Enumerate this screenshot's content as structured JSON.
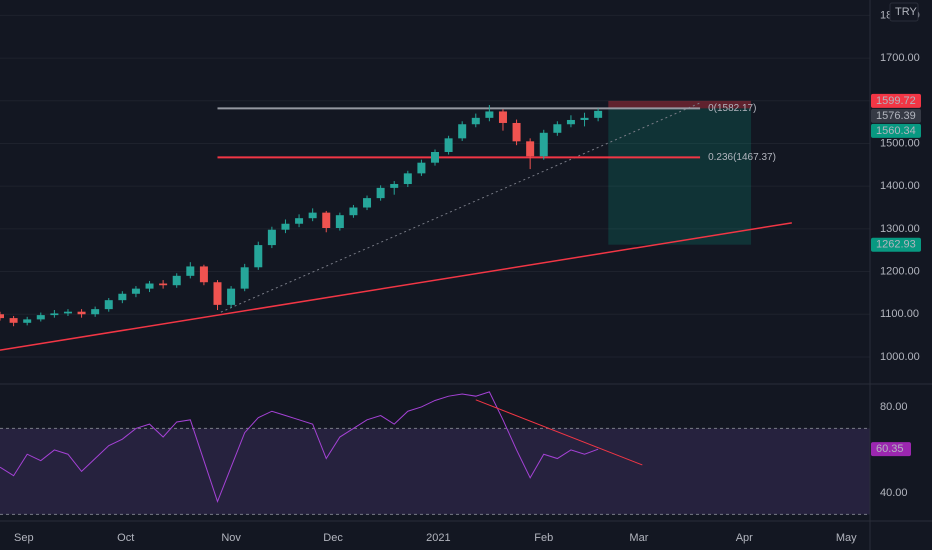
{
  "chart_data": [
    {
      "type": "candlestick",
      "currency": "TRY",
      "xlim": [
        -7,
        249
      ],
      "ylim": [
        939,
        1836
      ],
      "yticks": [
        {
          "value": 1000,
          "label": "1000.00"
        },
        {
          "value": 1100,
          "label": "1100.00"
        },
        {
          "value": 1200,
          "label": "1200.00"
        },
        {
          "value": 1300,
          "label": "1300.00"
        },
        {
          "value": 1400,
          "label": "1400.00"
        },
        {
          "value": 1500,
          "label": "1500.00"
        },
        {
          "value": 1600,
          "label": "1600.00"
        },
        {
          "value": 1700,
          "label": "1700.00"
        },
        {
          "value": 1800,
          "label": "1800.00"
        }
      ],
      "up_color": "#26a69a",
      "down_color": "#ef5350",
      "x": [
        -7,
        -3,
        1,
        5,
        9,
        13,
        17,
        21,
        25,
        29,
        33,
        37,
        41,
        45,
        49,
        53,
        57,
        61,
        65,
        69,
        73,
        77,
        81,
        85,
        89,
        93,
        97,
        101,
        105,
        109,
        113,
        117,
        121,
        125,
        129,
        133,
        137,
        141,
        145,
        149,
        153,
        157,
        161,
        165,
        169
      ],
      "open": [
        1100,
        1091,
        1080,
        1088,
        1098,
        1102,
        1106,
        1100,
        1112,
        1133,
        1148,
        1160,
        1172,
        1168,
        1190,
        1212,
        1175,
        1122,
        1160,
        1210,
        1262,
        1298,
        1312,
        1325,
        1338,
        1302,
        1332,
        1350,
        1372,
        1396,
        1405,
        1430,
        1455,
        1480,
        1512,
        1545,
        1560,
        1575,
        1548,
        1505,
        1470,
        1525,
        1545,
        1555,
        1560
      ],
      "high": [
        1106,
        1096,
        1094,
        1104,
        1110,
        1112,
        1112,
        1118,
        1138,
        1154,
        1166,
        1178,
        1180,
        1196,
        1222,
        1216,
        1180,
        1166,
        1218,
        1270,
        1305,
        1322,
        1334,
        1348,
        1342,
        1338,
        1356,
        1378,
        1402,
        1412,
        1436,
        1462,
        1486,
        1518,
        1552,
        1570,
        1590,
        1580,
        1556,
        1512,
        1532,
        1552,
        1566,
        1572,
        1582
      ],
      "low": [
        1085,
        1072,
        1074,
        1083,
        1092,
        1096,
        1092,
        1094,
        1106,
        1126,
        1140,
        1152,
        1160,
        1162,
        1184,
        1168,
        1110,
        1115,
        1154,
        1204,
        1255,
        1290,
        1304,
        1318,
        1292,
        1296,
        1326,
        1344,
        1366,
        1380,
        1398,
        1424,
        1448,
        1474,
        1506,
        1538,
        1552,
        1530,
        1496,
        1440,
        1462,
        1518,
        1538,
        1540,
        1552
      ],
      "close": [
        1091,
        1080,
        1088,
        1098,
        1102,
        1106,
        1100,
        1112,
        1133,
        1148,
        1160,
        1172,
        1168,
        1190,
        1212,
        1175,
        1122,
        1160,
        1210,
        1262,
        1298,
        1312,
        1325,
        1338,
        1302,
        1332,
        1350,
        1372,
        1396,
        1405,
        1430,
        1455,
        1480,
        1512,
        1545,
        1560,
        1575,
        1548,
        1505,
        1470,
        1525,
        1545,
        1555,
        1560,
        1576.39
      ],
      "lines": [
        {
          "x": [
            -7,
            226
          ],
          "values": [
            1016,
            1314
          ],
          "color": "#f23645",
          "style": "solid"
        },
        {
          "x": [
            58,
            199
          ],
          "values": [
            1105,
            1595
          ],
          "color": "#787b86",
          "style": "dotted"
        }
      ],
      "fib_levels": [
        {
          "label": "0(1582.17)",
          "value": 1582.17,
          "x": [
            57,
            199
          ],
          "color": "#9598a1"
        },
        {
          "label": "0.236(1467.37)",
          "value": 1467.37,
          "x": [
            57,
            199
          ],
          "color": "#f23645"
        }
      ],
      "position": {
        "x": [
          172,
          214
        ],
        "stop": 1599.72,
        "entry": 1582.17,
        "target": 1262.93
      },
      "price_markers": [
        {
          "value": 1599.72,
          "color": "#f23645"
        },
        {
          "value": 1576.39,
          "color": "#363a45"
        },
        {
          "value": 1560.34,
          "color": "#089981"
        },
        {
          "value": 1262.93,
          "color": "#089981"
        }
      ]
    },
    {
      "type": "line",
      "color": "#a542d6",
      "xlim": [
        -7,
        249
      ],
      "ylim": [
        27.4,
        90.2
      ],
      "xticks": [
        {
          "value": 0,
          "label": "Sep"
        },
        {
          "value": 30,
          "label": "Oct"
        },
        {
          "value": 61,
          "label": "Nov"
        },
        {
          "value": 91,
          "label": "Dec"
        },
        {
          "value": 122,
          "label": "2021"
        },
        {
          "value": 153,
          "label": "Feb"
        },
        {
          "value": 181,
          "label": "Mar"
        },
        {
          "value": 212,
          "label": "Apr"
        },
        {
          "value": 242,
          "label": "May"
        }
      ],
      "yticks": [
        {
          "value": 40,
          "label": "40.00"
        },
        {
          "value": 80,
          "label": "80.00"
        }
      ],
      "band": [
        30,
        70
      ],
      "x": [
        -7,
        -3,
        1,
        5,
        9,
        13,
        17,
        21,
        25,
        29,
        33,
        37,
        41,
        45,
        49,
        53,
        57,
        61,
        65,
        69,
        73,
        77,
        81,
        85,
        89,
        93,
        97,
        101,
        105,
        109,
        113,
        117,
        121,
        125,
        129,
        133,
        137,
        141,
        145,
        149,
        153,
        157,
        161,
        165,
        169
      ],
      "values": [
        52,
        48,
        58,
        55,
        60,
        58,
        50,
        56,
        62,
        65,
        70,
        72,
        66,
        73,
        74,
        55,
        36,
        52,
        68,
        75,
        78,
        76,
        74,
        72,
        56,
        66,
        70,
        74,
        76,
        72,
        78,
        80,
        83,
        85,
        86,
        85,
        87,
        74,
        60,
        47,
        58,
        56,
        60,
        58,
        60.35
      ],
      "trend_line": {
        "x": [
          133,
          182
        ],
        "values": [
          83.3,
          53
        ],
        "color": "#f23645"
      },
      "marker": {
        "value": 60.35,
        "color": "#9c27b0"
      }
    }
  ]
}
